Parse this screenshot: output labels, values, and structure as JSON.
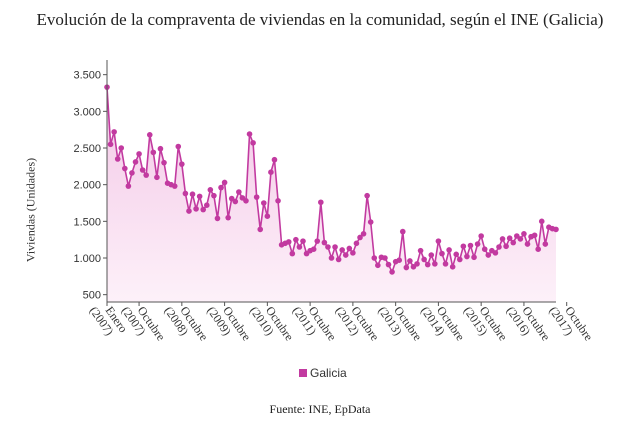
{
  "title": "Evolución de la compraventa de viviendas en la comunidad, según el INE (Galicia)",
  "source": "Fuente: INE, EpData",
  "colors": {
    "line": "#c23aa0",
    "area_top": "#f3c6e6",
    "area_bottom": "#fdf1f9",
    "axis": "#555555"
  },
  "chart_data": {
    "type": "area",
    "title": "Evolución de la compraventa de viviendas en la comunidad, según el INE (Galicia)",
    "ylabel": "Viviendas (Unidades)",
    "xlabel": "",
    "ylim": [
      400,
      3700
    ],
    "yticks": [
      500,
      1000,
      1500,
      2000,
      2500,
      3000,
      3500
    ],
    "ytick_labels": [
      "500",
      "1.000",
      "1.500",
      "2.000",
      "2.500",
      "3.000",
      "3.500"
    ],
    "grid": false,
    "legend_position": "bottom-center",
    "x_start": "2007-01",
    "x_tick_labels": [
      "Enero (2007)",
      "Octubre (2007)",
      "Octubre (2008)",
      "Octubre (2009)",
      "Octubre (2010)",
      "Octubre (2011)",
      "Octubre (2012)",
      "Octubre (2013)",
      "Octubre (2014)",
      "Octubre (2015)",
      "Octubre (2016)",
      "Octubre (2017)"
    ],
    "x_tick_months": [
      0,
      9,
      21,
      33,
      45,
      57,
      69,
      81,
      93,
      105,
      117,
      129
    ],
    "series": [
      {
        "name": "Galicia",
        "values": [
          3330,
          2550,
          2720,
          2350,
          2500,
          2220,
          1980,
          2160,
          2310,
          2420,
          2200,
          2130,
          2680,
          2440,
          2100,
          2490,
          2300,
          2020,
          2000,
          1980,
          2520,
          2280,
          1880,
          1640,
          1870,
          1670,
          1840,
          1660,
          1720,
          1930,
          1850,
          1540,
          1960,
          2030,
          1550,
          1810,
          1770,
          1900,
          1820,
          1780,
          2690,
          2570,
          1830,
          1390,
          1750,
          1570,
          2170,
          2340,
          1780,
          1180,
          1200,
          1220,
          1060,
          1250,
          1150,
          1230,
          1060,
          1100,
          1120,
          1230,
          1760,
          1210,
          1150,
          1000,
          1150,
          980,
          1110,
          1040,
          1130,
          1070,
          1200,
          1280,
          1330,
          1850,
          1490,
          1000,
          900,
          1010,
          1000,
          910,
          810,
          950,
          970,
          1360,
          870,
          960,
          880,
          920,
          1100,
          980,
          910,
          1040,
          920,
          1230,
          1060,
          920,
          1110,
          880,
          1050,
          980,
          1160,
          1020,
          1170,
          1010,
          1190,
          1300,
          1120,
          1040,
          1100,
          1070,
          1150,
          1260,
          1160,
          1270,
          1210,
          1300,
          1260,
          1330,
          1190,
          1290,
          1310,
          1120,
          1500,
          1190,
          1420,
          1400,
          1390
        ]
      }
    ]
  }
}
